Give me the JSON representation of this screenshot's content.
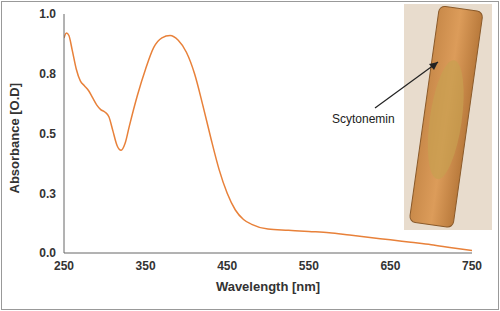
{
  "chart_data": {
    "type": "line",
    "x_label": "Wavelength [nm]",
    "y_label": "Absorbance [O.D]",
    "annotation": "Scytonemin",
    "color": "#e8813a",
    "grid": false,
    "xlim": [
      250,
      750
    ],
    "xticks": [
      250,
      350,
      450,
      550,
      650,
      750
    ],
    "ylim": [
      0,
      1
    ],
    "yticks": [
      {
        "value": 0,
        "label": "0.0"
      },
      {
        "value": 0.25,
        "label": "0.3"
      },
      {
        "value": 0.5,
        "label": "0.5"
      },
      {
        "value": 0.75,
        "label": "0.8"
      },
      {
        "value": 1,
        "label": "1.0"
      }
    ],
    "x": [
      250,
      253,
      256,
      260,
      265,
      270,
      275,
      280,
      285,
      290,
      295,
      300,
      305,
      310,
      315,
      320,
      325,
      330,
      340,
      350,
      360,
      370,
      380,
      390,
      400,
      410,
      420,
      430,
      440,
      450,
      460,
      470,
      480,
      500,
      525,
      550,
      575,
      600,
      625,
      650,
      675,
      700,
      725,
      750
    ],
    "values": [
      0.9,
      0.92,
      0.91,
      0.85,
      0.77,
      0.72,
      0.7,
      0.68,
      0.65,
      0.62,
      0.6,
      0.59,
      0.57,
      0.51,
      0.45,
      0.43,
      0.46,
      0.53,
      0.66,
      0.77,
      0.86,
      0.9,
      0.91,
      0.89,
      0.84,
      0.75,
      0.62,
      0.48,
      0.35,
      0.25,
      0.18,
      0.14,
      0.12,
      0.1,
      0.095,
      0.09,
      0.085,
      0.075,
      0.065,
      0.055,
      0.045,
      0.035,
      0.022,
      0.01
    ]
  }
}
